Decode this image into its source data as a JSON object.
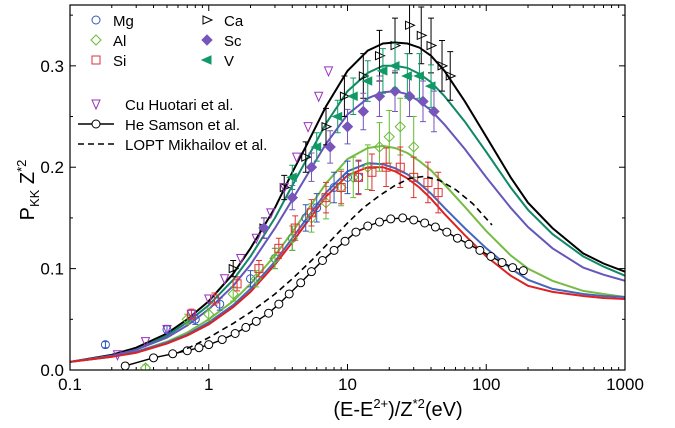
{
  "chart_data": {
    "type": "scatter",
    "title": "",
    "xlabel_parts": [
      "(E-E",
      "2+",
      ")/Z",
      "*2",
      "(eV)"
    ],
    "ylabel_parts": [
      "P",
      "KK",
      " Z",
      "*2"
    ],
    "xscale": "log",
    "xlim": [
      0.1,
      1000
    ],
    "ylim": [
      0.0,
      0.36
    ],
    "x_ticks": [
      0.1,
      1,
      10,
      100,
      1000
    ],
    "x_tick_labels": [
      "0.1",
      "1",
      "10",
      "100",
      "1000"
    ],
    "y_ticks": [
      0.0,
      0.1,
      0.2,
      0.3
    ],
    "y_tick_labels": [
      "0.0",
      "0.1",
      "0.2",
      "0.3"
    ],
    "legend_position": "top-left",
    "series": [
      {
        "name": "Mg",
        "marker": "circle",
        "color": "#3355bb",
        "x": [
          0.18,
          0.5,
          0.8,
          1.2,
          2.0,
          3.0,
          4.0,
          5.0,
          6.0,
          8.0,
          10.0,
          12.0
        ],
        "y": [
          0.025,
          0.04,
          0.05,
          0.065,
          0.09,
          0.11,
          0.13,
          0.15,
          0.16,
          0.18,
          0.19,
          0.19
        ],
        "err": [
          0.003,
          0.004,
          0.005,
          0.006,
          0.008,
          0.01,
          0.012,
          0.013,
          0.014,
          0.015,
          0.016,
          0.016
        ]
      },
      {
        "name": "Al",
        "marker": "diamond",
        "color": "#66bb33",
        "x": [
          0.35,
          0.7,
          1.0,
          1.5,
          2.2,
          3.0,
          4.0,
          5.5,
          7.0,
          9.0,
          11.0,
          14.0,
          17.0,
          20.0,
          24.0,
          30.0
        ],
        "y": [
          0.002,
          0.05,
          0.055,
          0.075,
          0.09,
          0.11,
          0.13,
          0.15,
          0.165,
          0.18,
          0.19,
          0.2,
          0.22,
          0.23,
          0.24,
          0.22
        ],
        "err": [
          0.003,
          0.005,
          0.006,
          0.007,
          0.008,
          0.01,
          0.012,
          0.014,
          0.016,
          0.018,
          0.02,
          0.022,
          0.024,
          0.026,
          0.028,
          0.03
        ]
      },
      {
        "name": "Si",
        "marker": "square",
        "color": "#dd3333",
        "x": [
          0.75,
          1.1,
          1.6,
          2.3,
          3.2,
          4.2,
          5.5,
          7.0,
          9.0,
          12.0,
          15.0,
          19.0,
          24.0,
          30.0,
          38.0,
          45.0
        ],
        "y": [
          0.055,
          0.07,
          0.085,
          0.1,
          0.12,
          0.14,
          0.155,
          0.17,
          0.18,
          0.19,
          0.195,
          0.2,
          0.2,
          0.19,
          0.185,
          0.175
        ],
        "err": [
          0.005,
          0.006,
          0.007,
          0.008,
          0.01,
          0.012,
          0.013,
          0.015,
          0.016,
          0.017,
          0.018,
          0.019,
          0.02,
          0.02,
          0.02,
          0.02
        ]
      },
      {
        "name": "Ca",
        "marker": "triangle-right",
        "color": "#000000",
        "x": [
          1.5,
          2.5,
          3.5,
          5.0,
          7.0,
          9.5,
          13.0,
          17.0,
          22.0,
          28.0,
          34.0,
          40.0,
          48.0,
          55.0
        ],
        "y": [
          0.1,
          0.14,
          0.18,
          0.21,
          0.24,
          0.27,
          0.29,
          0.31,
          0.32,
          0.34,
          0.33,
          0.32,
          0.3,
          0.29
        ],
        "err": [
          0.008,
          0.01,
          0.012,
          0.015,
          0.018,
          0.02,
          0.022,
          0.025,
          0.027,
          0.028,
          0.028,
          0.027,
          0.025,
          0.024
        ]
      },
      {
        "name": "Sc",
        "marker": "diamond-filled",
        "color": "#7755bb",
        "x": [
          2.5,
          4.0,
          5.5,
          7.5,
          10.0,
          13.0,
          17.0,
          22.0,
          28.0,
          35.0,
          42.0
        ],
        "y": [
          0.14,
          0.17,
          0.2,
          0.22,
          0.24,
          0.255,
          0.27,
          0.275,
          0.27,
          0.265,
          0.255
        ],
        "err": [
          0.01,
          0.012,
          0.014,
          0.016,
          0.017,
          0.018,
          0.02,
          0.02,
          0.02,
          0.02,
          0.02
        ]
      },
      {
        "name": "V",
        "marker": "triangle-left-filled",
        "color": "#119966",
        "x": [
          4.0,
          6.0,
          8.5,
          11.0,
          14.0,
          18.0,
          22.0,
          27.0,
          33.0,
          40.0
        ],
        "y": [
          0.19,
          0.22,
          0.25,
          0.27,
          0.285,
          0.295,
          0.3,
          0.29,
          0.29,
          0.28
        ],
        "err": [
          0.012,
          0.014,
          0.016,
          0.018,
          0.02,
          0.022,
          0.022,
          0.022,
          0.022,
          0.021
        ]
      },
      {
        "name": "Cu Huotari et al.",
        "marker": "triangle-down",
        "color": "#9933bb",
        "x": [
          0.22,
          0.35,
          0.5,
          0.75,
          1.0,
          1.3,
          1.7,
          2.2,
          2.8,
          3.5,
          4.3,
          5.2,
          6.2,
          7.3
        ],
        "y": [
          0.015,
          0.028,
          0.04,
          0.055,
          0.07,
          0.09,
          0.11,
          0.13,
          0.155,
          0.18,
          0.21,
          0.24,
          0.27,
          0.295
        ],
        "err": []
      },
      {
        "name": "He Samson et al.",
        "marker": "circle-line",
        "color": "#000000",
        "x": [
          0.25,
          0.4,
          0.55,
          0.7,
          0.85,
          1.0,
          1.25,
          1.55,
          1.85,
          2.2,
          2.7,
          3.2,
          3.8,
          4.6,
          5.5,
          6.6,
          8.0,
          9.6,
          11.5,
          14.0,
          17.0,
          20.5,
          25.0,
          30.0,
          36.0,
          43.0,
          52.0,
          62.0,
          75.0,
          90.0,
          108.0,
          130.0,
          155.0,
          185.0
        ],
        "y": [
          0.004,
          0.012,
          0.016,
          0.019,
          0.022,
          0.025,
          0.03,
          0.036,
          0.042,
          0.048,
          0.056,
          0.065,
          0.075,
          0.086,
          0.097,
          0.108,
          0.118,
          0.127,
          0.136,
          0.142,
          0.146,
          0.149,
          0.15,
          0.148,
          0.145,
          0.141,
          0.136,
          0.13,
          0.124,
          0.118,
          0.112,
          0.106,
          0.101,
          0.098
        ],
        "err": []
      },
      {
        "name": "LOPT Mikhailov et al.",
        "marker": "none",
        "color": "#000000",
        "x": [
          0.6,
          0.8,
          1.0,
          1.5,
          2.0,
          3.0,
          4.0,
          5.5,
          7.5,
          10.0,
          13.0,
          17.0,
          22.0,
          28.0,
          36.0,
          46.0,
          60.0,
          80.0,
          110.0
        ],
        "y": [
          0.017,
          0.025,
          0.032,
          0.046,
          0.057,
          0.075,
          0.09,
          0.108,
          0.127,
          0.145,
          0.16,
          0.172,
          0.182,
          0.189,
          0.191,
          0.187,
          0.178,
          0.164,
          0.143
        ],
        "err": []
      }
    ],
    "curves": [
      {
        "name": "Ca-theory",
        "color": "#000000",
        "x": [
          0.1,
          0.2,
          0.3,
          0.5,
          0.7,
          1.0,
          1.5,
          2.0,
          3.0,
          4.0,
          5.0,
          7.0,
          10.0,
          14.0,
          18.0,
          22.0,
          27.0,
          33.0,
          40.0,
          50.0,
          70.0,
          100.0,
          150.0,
          200.0,
          300.0,
          500.0,
          700.0,
          1000.0
        ],
        "y": [
          0.008,
          0.015,
          0.022,
          0.036,
          0.05,
          0.068,
          0.095,
          0.12,
          0.16,
          0.195,
          0.22,
          0.26,
          0.295,
          0.315,
          0.322,
          0.323,
          0.322,
          0.318,
          0.31,
          0.295,
          0.265,
          0.23,
          0.19,
          0.165,
          0.14,
          0.115,
          0.105,
          0.097
        ]
      },
      {
        "name": "V-theory",
        "color": "#118866",
        "x": [
          0.1,
          0.2,
          0.3,
          0.5,
          0.7,
          1.0,
          1.5,
          2.0,
          3.0,
          4.0,
          5.0,
          7.0,
          10.0,
          14.0,
          18.0,
          22.0,
          27.0,
          33.0,
          40.0,
          50.0,
          70.0,
          100.0,
          150.0,
          200.0,
          300.0,
          500.0,
          700.0,
          1000.0
        ],
        "y": [
          0.008,
          0.014,
          0.02,
          0.034,
          0.047,
          0.064,
          0.089,
          0.112,
          0.15,
          0.182,
          0.206,
          0.243,
          0.275,
          0.293,
          0.3,
          0.3,
          0.298,
          0.292,
          0.284,
          0.27,
          0.245,
          0.215,
          0.18,
          0.158,
          0.134,
          0.112,
          0.102,
          0.093
        ]
      },
      {
        "name": "Sc-theory",
        "color": "#6655bb",
        "x": [
          0.1,
          0.2,
          0.3,
          0.5,
          0.7,
          1.0,
          1.5,
          2.0,
          3.0,
          4.0,
          5.0,
          7.0,
          10.0,
          14.0,
          18.0,
          22.0,
          27.0,
          33.0,
          40.0,
          50.0,
          70.0,
          100.0,
          150.0,
          200.0,
          300.0,
          500.0,
          700.0,
          1000.0
        ],
        "y": [
          0.008,
          0.014,
          0.02,
          0.032,
          0.044,
          0.06,
          0.083,
          0.104,
          0.14,
          0.168,
          0.19,
          0.223,
          0.252,
          0.268,
          0.274,
          0.275,
          0.272,
          0.265,
          0.256,
          0.242,
          0.218,
          0.19,
          0.16,
          0.141,
          0.12,
          0.101,
          0.094,
          0.088
        ]
      },
      {
        "name": "Al-theory",
        "color": "#77bb44",
        "x": [
          0.1,
          0.2,
          0.3,
          0.5,
          0.7,
          1.0,
          1.5,
          2.0,
          3.0,
          4.0,
          5.0,
          7.0,
          10.0,
          14.0,
          18.0,
          22.0,
          27.0,
          33.0,
          40.0,
          50.0,
          70.0,
          100.0,
          150.0,
          200.0,
          300.0,
          500.0,
          700.0,
          1000.0
        ],
        "y": [
          0.008,
          0.013,
          0.018,
          0.028,
          0.037,
          0.05,
          0.068,
          0.085,
          0.113,
          0.136,
          0.155,
          0.184,
          0.208,
          0.219,
          0.221,
          0.219,
          0.214,
          0.206,
          0.197,
          0.183,
          0.161,
          0.137,
          0.113,
          0.1,
          0.088,
          0.078,
          0.075,
          0.072
        ]
      },
      {
        "name": "Mg-theory",
        "color": "#4466bb",
        "x": [
          0.1,
          0.2,
          0.3,
          0.5,
          0.7,
          1.0,
          1.5,
          2.0,
          3.0,
          4.0,
          5.0,
          7.0,
          10.0,
          14.0,
          18.0,
          22.0,
          27.0,
          33.0,
          40.0,
          50.0,
          70.0,
          100.0,
          150.0,
          200.0,
          300.0,
          500.0,
          700.0,
          1000.0
        ],
        "y": [
          0.008,
          0.013,
          0.018,
          0.027,
          0.035,
          0.047,
          0.064,
          0.08,
          0.107,
          0.13,
          0.148,
          0.175,
          0.196,
          0.204,
          0.203,
          0.199,
          0.193,
          0.184,
          0.174,
          0.16,
          0.14,
          0.12,
          0.1,
          0.089,
          0.08,
          0.075,
          0.073,
          0.072
        ]
      },
      {
        "name": "Si-theory",
        "color": "#dd2222",
        "x": [
          0.1,
          0.2,
          0.3,
          0.5,
          0.7,
          1.0,
          1.5,
          2.0,
          3.0,
          4.0,
          5.0,
          7.0,
          10.0,
          14.0,
          18.0,
          22.0,
          27.0,
          33.0,
          40.0,
          50.0,
          70.0,
          100.0,
          150.0,
          200.0,
          300.0,
          500.0,
          700.0,
          1000.0
        ],
        "y": [
          0.008,
          0.013,
          0.017,
          0.026,
          0.034,
          0.045,
          0.062,
          0.077,
          0.104,
          0.126,
          0.144,
          0.171,
          0.192,
          0.2,
          0.2,
          0.196,
          0.189,
          0.18,
          0.169,
          0.154,
          0.133,
          0.112,
          0.093,
          0.083,
          0.077,
          0.073,
          0.071,
          0.07
        ]
      }
    ]
  }
}
